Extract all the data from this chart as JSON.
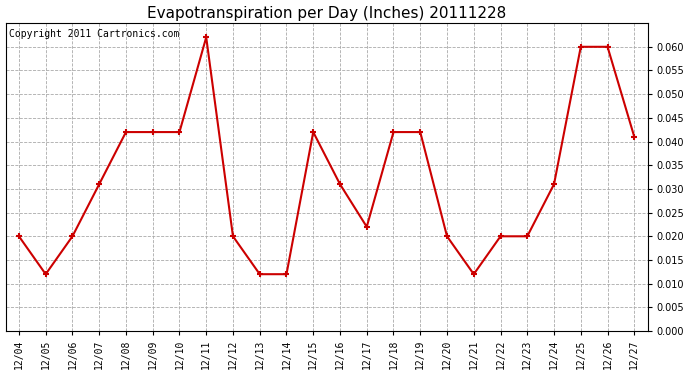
{
  "title": "Evapotranspiration per Day (Inches) 20111228",
  "copyright": "Copyright 2011 Cartronics.com",
  "dates": [
    "12/04",
    "12/05",
    "12/06",
    "12/07",
    "12/08",
    "12/09",
    "12/10",
    "12/11",
    "12/12",
    "12/13",
    "12/14",
    "12/15",
    "12/16",
    "12/17",
    "12/18",
    "12/19",
    "12/20",
    "12/21",
    "12/22",
    "12/23",
    "12/24",
    "12/25",
    "12/26",
    "12/27"
  ],
  "values": [
    0.02,
    0.012,
    0.02,
    0.031,
    0.042,
    0.042,
    0.042,
    0.062,
    0.02,
    0.012,
    0.012,
    0.042,
    0.031,
    0.022,
    0.042,
    0.042,
    0.02,
    0.012,
    0.02,
    0.02,
    0.031,
    0.06,
    0.06,
    0.041
  ],
  "line_color": "#cc0000",
  "marker": "+",
  "marker_size": 5,
  "marker_linewidth": 1.5,
  "line_width": 1.5,
  "ylim": [
    0.0,
    0.065
  ],
  "ytick_min": 0.0,
  "ytick_max": 0.06,
  "ytick_step": 0.005,
  "background_color": "#ffffff",
  "plot_bg_color": "#f0f0f0",
  "grid_color": "#aaaaaa",
  "title_fontsize": 11,
  "tick_fontsize": 7,
  "copyright_fontsize": 7
}
